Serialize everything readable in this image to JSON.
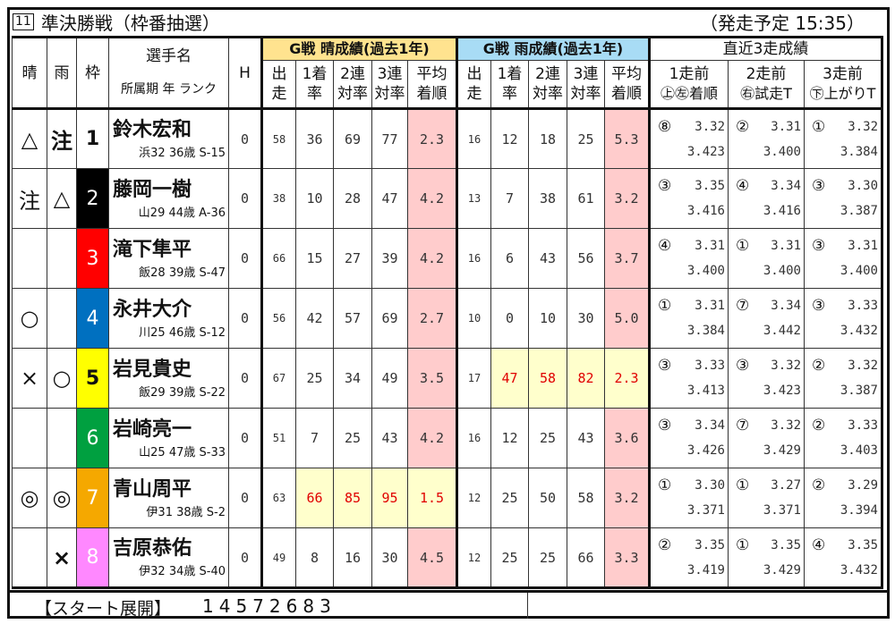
{
  "header": {
    "race_number": "11",
    "race_name": "準決勝戦（枠番抽選）",
    "start_time": "（発走予定 15:35）"
  },
  "columns": {
    "sun": "晴",
    "rain": "雨",
    "waku": "枠",
    "name": "選手名",
    "name_sub": "所属期 年 ランク",
    "h": "H",
    "sun_group": "G戦 晴成績(過去1年)",
    "rain_group": "G戦 雨成績(過去1年)",
    "recent_group": "直近3走成績",
    "stats": [
      [
        "出",
        "走"
      ],
      [
        "1着",
        "率"
      ],
      [
        "2連",
        "対率"
      ],
      [
        "3連",
        "対率"
      ],
      [
        "平均",
        "着順"
      ]
    ],
    "recent": [
      [
        "1走前",
        "㊤㊧着順"
      ],
      [
        "2走前",
        "㊨試走T"
      ],
      [
        "3走前",
        "㊦上がりT"
      ]
    ]
  },
  "colors": {
    "sun_header": "#ffe38f",
    "rain_header": "#a8dcf5",
    "avg_cell": "#ffcccc",
    "best_cell": "#ffffcc",
    "best_text": "#e00000"
  },
  "riders": [
    {
      "sun": "△",
      "rain": "注",
      "waku": "1",
      "waku_bg": "#ffffff",
      "waku_fg": "#111111",
      "name": "鈴木宏和",
      "meta": "浜32 36歳 S-15",
      "h": "0",
      "sun_stats": [
        "58",
        "36",
        "69",
        "77",
        "2.3"
      ],
      "rain_stats": [
        "16",
        "12",
        "18",
        "25",
        "5.3"
      ],
      "sun_best": false,
      "rain_best": false,
      "recent": [
        [
          "⑧",
          "3.32",
          "3.423"
        ],
        [
          "②",
          "3.31",
          "3.400"
        ],
        [
          "①",
          "3.32",
          "3.384"
        ]
      ]
    },
    {
      "sun": "注",
      "rain": "△",
      "waku": "2",
      "waku_bg": "#000000",
      "waku_fg": "#ffffff",
      "name": "藤岡一樹",
      "meta": "山29 44歳 A-36",
      "h": "0",
      "sun_stats": [
        "38",
        "10",
        "28",
        "47",
        "4.2"
      ],
      "rain_stats": [
        "13",
        "7",
        "38",
        "61",
        "3.2"
      ],
      "sun_best": false,
      "rain_best": false,
      "recent": [
        [
          "③",
          "3.35",
          "3.416"
        ],
        [
          "④",
          "3.34",
          "3.416"
        ],
        [
          "③",
          "3.30",
          "3.387"
        ]
      ]
    },
    {
      "sun": "",
      "rain": "",
      "waku": "3",
      "waku_bg": "#ff0000",
      "waku_fg": "#ffffff",
      "name": "滝下隼平",
      "meta": "飯28 39歳 S-47",
      "h": "0",
      "sun_stats": [
        "66",
        "15",
        "27",
        "39",
        "4.2"
      ],
      "rain_stats": [
        "16",
        "6",
        "43",
        "56",
        "3.7"
      ],
      "sun_best": false,
      "rain_best": false,
      "recent": [
        [
          "④",
          "3.31",
          "3.400"
        ],
        [
          "①",
          "3.31",
          "3.400"
        ],
        [
          "③",
          "3.31",
          "3.400"
        ]
      ]
    },
    {
      "sun": "○",
      "rain": "",
      "waku": "4",
      "waku_bg": "#0070c0",
      "waku_fg": "#ffffff",
      "name": "永井大介",
      "meta": "川25 46歳 S-12",
      "h": "0",
      "sun_stats": [
        "56",
        "42",
        "57",
        "69",
        "2.7"
      ],
      "rain_stats": [
        "10",
        "0",
        "10",
        "30",
        "5.0"
      ],
      "sun_best": false,
      "rain_best": false,
      "recent": [
        [
          "①",
          "3.31",
          "3.384"
        ],
        [
          "⑦",
          "3.34",
          "3.442"
        ],
        [
          "③",
          "3.33",
          "3.432"
        ]
      ]
    },
    {
      "sun": "×",
      "rain": "○",
      "waku": "5",
      "waku_bg": "#ffff00",
      "waku_fg": "#111111",
      "name": "岩見貴史",
      "meta": "飯29 39歳 S-22",
      "h": "0",
      "sun_stats": [
        "67",
        "25",
        "34",
        "49",
        "3.5"
      ],
      "rain_stats": [
        "17",
        "47",
        "58",
        "82",
        "2.3"
      ],
      "sun_best": false,
      "rain_best": true,
      "recent": [
        [
          "③",
          "3.33",
          "3.413"
        ],
        [
          "③",
          "3.32",
          "3.423"
        ],
        [
          "②",
          "3.32",
          "3.387"
        ]
      ]
    },
    {
      "sun": "",
      "rain": "",
      "waku": "6",
      "waku_bg": "#00a040",
      "waku_fg": "#ffffff",
      "name": "岩崎亮一",
      "meta": "山25 47歳 S-33",
      "h": "0",
      "sun_stats": [
        "51",
        "7",
        "25",
        "43",
        "4.2"
      ],
      "rain_stats": [
        "16",
        "12",
        "25",
        "43",
        "3.6"
      ],
      "sun_best": false,
      "rain_best": false,
      "recent": [
        [
          "③",
          "3.34",
          "3.426"
        ],
        [
          "⑦",
          "3.32",
          "3.429"
        ],
        [
          "②",
          "3.33",
          "3.403"
        ]
      ]
    },
    {
      "sun": "◎",
      "rain": "◎",
      "waku": "7",
      "waku_bg": "#f5a800",
      "waku_fg": "#ffffff",
      "name": "青山周平",
      "meta": "伊31 38歳 S-2",
      "h": "0",
      "sun_stats": [
        "63",
        "66",
        "85",
        "95",
        "1.5"
      ],
      "rain_stats": [
        "12",
        "25",
        "50",
        "58",
        "3.2"
      ],
      "sun_best": true,
      "rain_best": false,
      "recent": [
        [
          "①",
          "3.30",
          "3.371"
        ],
        [
          "①",
          "3.27",
          "3.371"
        ],
        [
          "②",
          "3.29",
          "3.394"
        ]
      ]
    },
    {
      "sun": "",
      "rain": "×",
      "waku": "8",
      "waku_bg": "#ff88ff",
      "waku_fg": "#ffffff",
      "name": "吉原恭佑",
      "meta": "伊32 34歳 S-40",
      "h": "0",
      "sun_stats": [
        "49",
        "8",
        "16",
        "30",
        "4.5"
      ],
      "rain_stats": [
        "12",
        "25",
        "25",
        "66",
        "3.3"
      ],
      "sun_best": false,
      "rain_best": false,
      "recent": [
        [
          "②",
          "3.35",
          "3.419"
        ],
        [
          "①",
          "3.35",
          "3.429"
        ],
        [
          "④",
          "3.35",
          "3.432"
        ]
      ]
    }
  ],
  "footer": {
    "label": "【スタート展開】",
    "order": "14572683"
  }
}
